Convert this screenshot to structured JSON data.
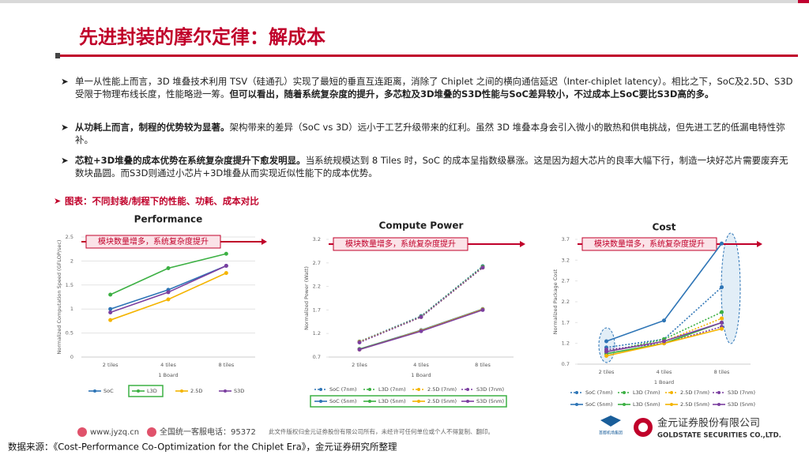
{
  "title": "先进封装的摩尔定律：解成本",
  "bullets": [
    [
      {
        "text": "单一从性能上而言，3D 堆叠技术利用 TSV（硅通孔）实现了最短的垂直互连距离，消除了 Chiplet 之间的横向通信延迟（Inter-chiplet latency）。相比之下，SoC及2.5D、S3D 受限于物理布线长度，性能略逊一筹。",
        "bold": false
      },
      {
        "text": "但可以看出，随着系统复杂度的提升，多芯粒及3D堆叠的S3D性能与SoC差异较小，不过成本上SoC要比S3D高的多。",
        "bold": true
      }
    ],
    [
      {
        "text": "从功耗上而言，制程的优势较为显著。",
        "bold": true
      },
      {
        "text": "架构带来的差异（SoC vs 3D）远小于工艺升级带来的红利。虽然 3D 堆叠本身会引入微小的散热和供电挑战，但先进工艺的低漏电特性弥补。",
        "bold": false
      }
    ],
    [
      {
        "text": "芯粒+3D堆叠的成本优势在系统复杂度提升下愈发明显。",
        "bold": true
      },
      {
        "text": "当系统规模达到 8 Tiles 时，SoC 的成本呈指数级暴涨。这是因为超大芯片的良率大幅下行，制造一块好芯片需要废弃无数块晶圆。而S3D则通过小芯片+3D堆叠从而实现近似性能下的成本优势。",
        "bold": false
      }
    ]
  ],
  "figure_title": "图表：不同封装/制程下的性能、功耗、成本对比",
  "charts": [
    {
      "type": "line",
      "title": "Performance",
      "annotation": "模块数量增多，系统复杂度提升",
      "x_label": "1 Board",
      "y_label": "Normalized Computation Speed (GFLOP/sec)",
      "categories": [
        "2 tiles",
        "4 tiles",
        "8 tiles"
      ],
      "ylim": [
        0,
        2.5
      ],
      "yticks": [
        0,
        0.5,
        1,
        1.5,
        2,
        2.5
      ],
      "grid": true,
      "series": [
        {
          "name": "SoC",
          "color": "#2e75b6",
          "style": "solid",
          "values": [
            1.0,
            1.4,
            1.9
          ]
        },
        {
          "name": "L3D",
          "color": "#3cb043",
          "style": "solid",
          "values": [
            1.3,
            1.85,
            2.15
          ]
        },
        {
          "name": "2.5D",
          "color": "#f4b400",
          "style": "solid",
          "values": [
            0.77,
            1.2,
            1.75
          ]
        },
        {
          "name": "S3D",
          "color": "#7b3fa0",
          "style": "solid",
          "values": [
            0.93,
            1.35,
            1.9
          ]
        }
      ]
    },
    {
      "type": "line",
      "title": "Compute Power",
      "annotation": "模块数量增多，系统复杂度提升",
      "x_label": "1 Board",
      "y_label": "Normalized Power (Watt)",
      "categories": [
        "2 tiles",
        "4 tiles",
        "8 tiles"
      ],
      "ylim": [
        0.7,
        3.2
      ],
      "yticks": [
        0.7,
        1.2,
        1.7,
        2.2,
        2.7,
        3.2
      ],
      "grid": false,
      "series": [
        {
          "name": "SoC (7nm)",
          "color": "#2e75b6",
          "style": "dotted",
          "values": [
            1.03,
            1.57,
            2.63
          ]
        },
        {
          "name": "L3D (7nm)",
          "color": "#3cb043",
          "style": "dotted",
          "values": [
            1.02,
            1.56,
            2.62
          ]
        },
        {
          "name": "2.5D (7nm)",
          "color": "#f4b400",
          "style": "dotted",
          "values": [
            1.02,
            1.55,
            2.6
          ]
        },
        {
          "name": "S3D (7nm)",
          "color": "#7b3fa0",
          "style": "dotted",
          "values": [
            1.01,
            1.55,
            2.6
          ]
        },
        {
          "name": "SoC (5nm)",
          "color": "#2e75b6",
          "style": "solid",
          "values": [
            0.87,
            1.27,
            1.72
          ]
        },
        {
          "name": "L3D (5nm)",
          "color": "#3cb043",
          "style": "solid",
          "values": [
            0.87,
            1.26,
            1.71
          ]
        },
        {
          "name": "2.5D (5nm)",
          "color": "#f4b400",
          "style": "solid",
          "values": [
            0.86,
            1.26,
            1.71
          ]
        },
        {
          "name": "S3D (5nm)",
          "color": "#7b3fa0",
          "style": "solid",
          "values": [
            0.86,
            1.25,
            1.7
          ]
        }
      ]
    },
    {
      "type": "line",
      "title": "Cost",
      "annotation": "模块数量增多，系统复杂度提升",
      "x_label": "1 Board",
      "y_label": "Normalized Package Cost",
      "categories": [
        "2 tiles",
        "4 tiles",
        "8 tiles"
      ],
      "ylim": [
        0.7,
        3.7
      ],
      "yticks": [
        0.7,
        1.2,
        1.7,
        2.2,
        2.7,
        3.2,
        3.7
      ],
      "grid": false,
      "series": [
        {
          "name": "SoC (7nm)",
          "color": "#2e75b6",
          "style": "dotted",
          "values": [
            1.1,
            1.3,
            2.55
          ]
        },
        {
          "name": "L3D (7nm)",
          "color": "#3cb043",
          "style": "dotted",
          "values": [
            1.0,
            1.3,
            1.95
          ]
        },
        {
          "name": "2.5D (7nm)",
          "color": "#f4b400",
          "style": "dotted",
          "values": [
            1.0,
            1.25,
            1.8
          ]
        },
        {
          "name": "S3D (7nm)",
          "color": "#7b3fa0",
          "style": "dotted",
          "values": [
            1.05,
            1.2,
            1.6
          ]
        },
        {
          "name": "SoC (5nm)",
          "color": "#2e75b6",
          "style": "solid",
          "values": [
            1.25,
            1.75,
            3.6
          ]
        },
        {
          "name": "L3D (5nm)",
          "color": "#3cb043",
          "style": "solid",
          "values": [
            0.95,
            1.2,
            1.7
          ]
        },
        {
          "name": "2.5D (5nm)",
          "color": "#f4b400",
          "style": "solid",
          "values": [
            0.9,
            1.2,
            1.55
          ]
        },
        {
          "name": "S3D (5nm)",
          "color": "#7b3fa0",
          "style": "solid",
          "values": [
            1.0,
            1.25,
            1.7
          ]
        }
      ]
    }
  ],
  "footer": {
    "website": "www.jyzq.cn",
    "hotline": "全国统一客服电话：95372",
    "copyright": "此文件版权归金元证券股份有限公司所有，未经许可任何单位或个人不得复制、翻印。",
    "partner": "首都机场集团",
    "company": "金元证券股份有限公司",
    "company_en": "GOLDSTATE SECURITIES CO.,LTD."
  },
  "source": "数据来源：《Cost-Performance Co-Optimization for the Chiplet Era》，金元证券研究所整理"
}
